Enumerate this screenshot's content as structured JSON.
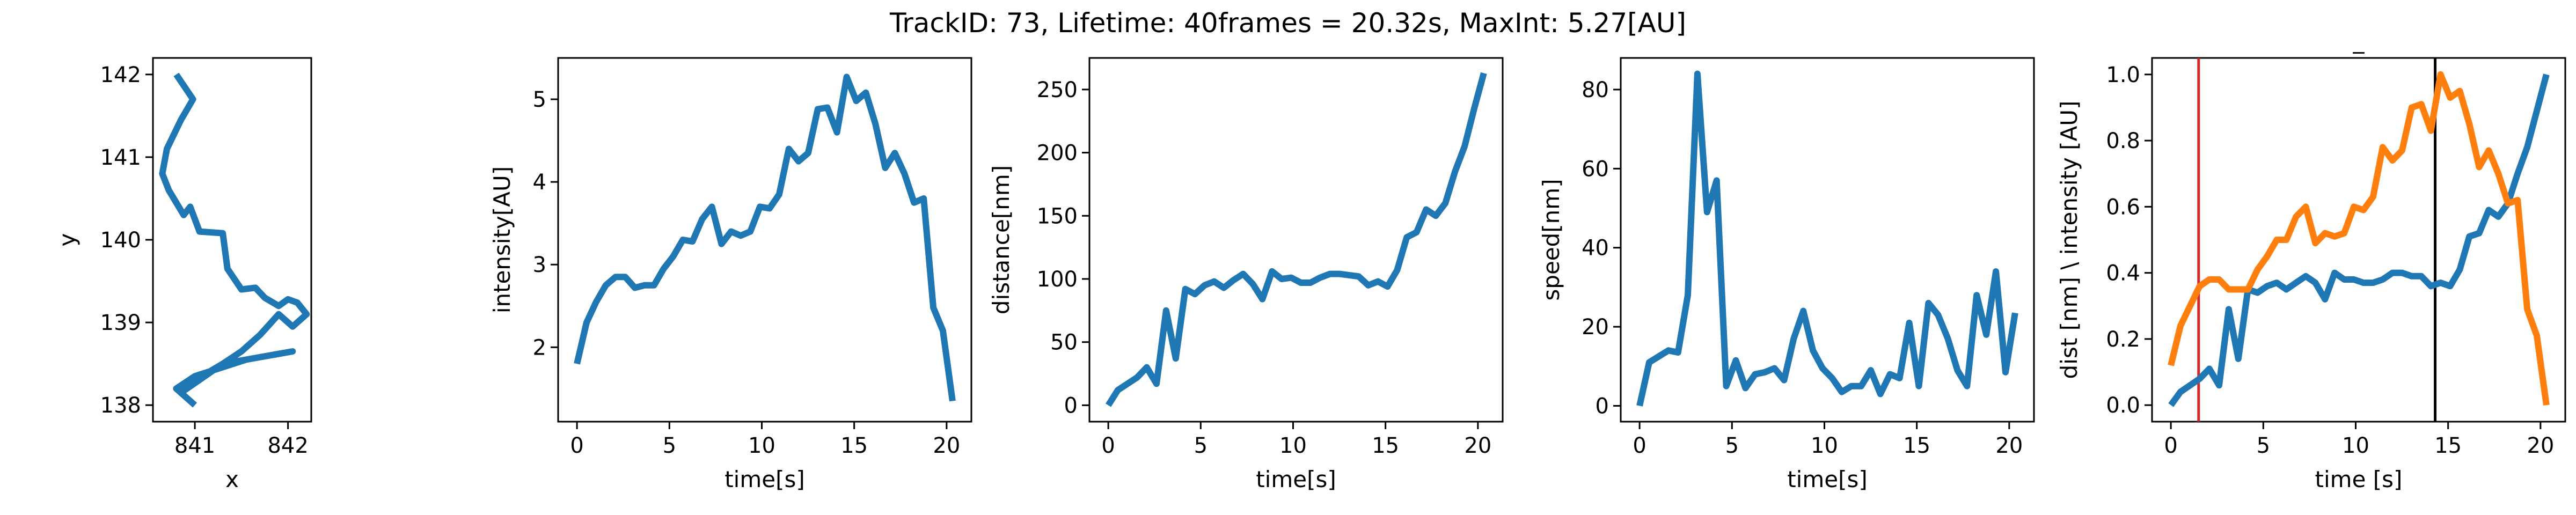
{
  "figure": {
    "suptitle": "TrackID: 73, Lifetime: 40frames = 20.32s, MaxInt: 5.27[AU]"
  },
  "chart_data": [
    {
      "type": "line",
      "title": "",
      "xlabel": "x",
      "ylabel": "y",
      "xlim": [
        840.55,
        842.25
      ],
      "ylim": [
        137.8,
        142.2
      ],
      "xticks": [
        841,
        842
      ],
      "yticks": [
        138,
        139,
        140,
        141,
        142
      ],
      "grid": false,
      "series": [
        {
          "color": "#1f77b4",
          "x": [
            840.8,
            840.95,
            840.98,
            840.85,
            840.7,
            840.65,
            840.72,
            840.88,
            840.95,
            841.05,
            841.3,
            841.35,
            841.5,
            841.65,
            841.75,
            841.9,
            842.0,
            842.1,
            842.2,
            842.05,
            841.9,
            841.7,
            841.5,
            841.3,
            841.15,
            840.95,
            840.85,
            841.3,
            842.05,
            841.55,
            841.0,
            840.8,
            841.0
          ],
          "y": [
            142.0,
            141.75,
            141.7,
            141.45,
            141.1,
            140.8,
            140.6,
            140.3,
            140.4,
            140.1,
            140.08,
            139.65,
            139.4,
            139.42,
            139.3,
            139.2,
            139.28,
            139.24,
            139.1,
            138.95,
            139.1,
            138.85,
            138.65,
            138.5,
            138.4,
            138.25,
            138.15,
            138.5,
            138.65,
            138.55,
            138.35,
            138.2,
            138.0
          ]
        }
      ]
    },
    {
      "type": "line",
      "title": "",
      "xlabel": "time[s]",
      "ylabel": "intensity[AU]",
      "xlim": [
        -1.02,
        21.34
      ],
      "ylim": [
        1.1,
        5.5
      ],
      "xticks": [
        0,
        5,
        10,
        15,
        20
      ],
      "yticks": [
        2,
        3,
        4,
        5
      ],
      "grid": false,
      "series": [
        {
          "color": "#1f77b4",
          "x": [
            0.0,
            0.52,
            1.04,
            1.56,
            2.08,
            2.61,
            3.13,
            3.65,
            4.17,
            4.69,
            5.21,
            5.73,
            6.25,
            6.77,
            7.3,
            7.82,
            8.34,
            8.86,
            9.38,
            9.9,
            10.42,
            10.94,
            11.46,
            11.99,
            12.51,
            13.03,
            13.55,
            14.07,
            14.59,
            15.11,
            15.63,
            16.15,
            16.68,
            17.2,
            17.72,
            18.24,
            18.76,
            19.28,
            19.8,
            20.32
          ],
          "y": [
            1.8,
            2.3,
            2.55,
            2.75,
            2.85,
            2.85,
            2.72,
            2.75,
            2.75,
            2.95,
            3.1,
            3.3,
            3.28,
            3.55,
            3.7,
            3.25,
            3.4,
            3.35,
            3.4,
            3.7,
            3.68,
            3.85,
            4.4,
            4.25,
            4.35,
            4.88,
            4.9,
            4.6,
            5.27,
            4.98,
            5.08,
            4.7,
            4.17,
            4.35,
            4.1,
            3.75,
            3.8,
            2.48,
            2.2,
            1.35
          ]
        }
      ]
    },
    {
      "type": "line",
      "title": "",
      "xlabel": "time[s]",
      "ylabel": "distance[nm]",
      "xlim": [
        -1.02,
        21.34
      ],
      "ylim": [
        -13,
        275
      ],
      "xticks": [
        0,
        5,
        10,
        15,
        20
      ],
      "yticks": [
        0,
        50,
        100,
        150,
        200,
        250
      ],
      "grid": false,
      "series": [
        {
          "color": "#1f77b4",
          "x": [
            0.0,
            0.52,
            1.04,
            1.56,
            2.08,
            2.61,
            3.13,
            3.65,
            4.17,
            4.69,
            5.21,
            5.73,
            6.25,
            6.77,
            7.3,
            7.82,
            8.34,
            8.86,
            9.38,
            9.9,
            10.42,
            10.94,
            11.46,
            11.99,
            12.51,
            13.03,
            13.55,
            14.07,
            14.59,
            15.11,
            15.63,
            16.15,
            16.68,
            17.2,
            17.72,
            18.24,
            18.76,
            19.28,
            19.8,
            20.32
          ],
          "y": [
            0,
            12,
            17,
            22,
            30,
            17,
            75,
            37,
            92,
            88,
            95,
            98,
            93,
            99,
            104,
            96,
            84,
            106,
            100,
            101,
            97,
            97,
            101,
            104,
            104,
            103,
            102,
            95,
            98,
            94,
            107,
            133,
            137,
            155,
            150,
            160,
            185,
            205,
            235,
            263
          ]
        }
      ]
    },
    {
      "type": "line",
      "title": "",
      "xlabel": "time[s]",
      "ylabel": "speed[nm]",
      "xlim": [
        -1.02,
        21.34
      ],
      "ylim": [
        -4,
        88
      ],
      "xticks": [
        0,
        5,
        10,
        15,
        20
      ],
      "yticks": [
        0,
        20,
        40,
        60,
        80
      ],
      "grid": false,
      "series": [
        {
          "color": "#1f77b4",
          "x": [
            0.0,
            0.52,
            1.04,
            1.56,
            2.08,
            2.61,
            3.13,
            3.65,
            4.17,
            4.69,
            5.21,
            5.73,
            6.25,
            6.77,
            7.3,
            7.82,
            8.34,
            8.86,
            9.38,
            9.9,
            10.42,
            10.94,
            11.46,
            11.99,
            12.51,
            13.03,
            13.55,
            14.07,
            14.59,
            15.11,
            15.63,
            16.15,
            16.68,
            17.2,
            17.72,
            18.24,
            18.76,
            19.28,
            19.8,
            20.32
          ],
          "y": [
            0,
            11,
            12.5,
            14,
            13.5,
            28,
            84,
            49,
            57,
            5,
            11.5,
            4.5,
            8,
            8.5,
            9.5,
            6.5,
            17,
            24,
            14,
            9.5,
            7,
            3.5,
            5,
            5,
            9,
            3,
            8,
            7,
            21,
            5,
            26,
            23,
            17,
            9,
            5,
            28,
            18,
            34,
            8.5,
            23.5
          ]
        }
      ]
    },
    {
      "type": "line",
      "title": "_",
      "xlabel": "time [s]",
      "ylabel": "dist [nm] \\ intensity [AU]",
      "xlim": [
        -1.02,
        21.34
      ],
      "ylim": [
        -0.05,
        1.05
      ],
      "xticks": [
        0,
        5,
        10,
        15,
        20
      ],
      "yticks": [
        0.0,
        0.2,
        0.4,
        0.6,
        0.8,
        1.0
      ],
      "ytick_labels": [
        "0.0",
        "0.2",
        "0.4",
        "0.6",
        "0.8",
        "1.0"
      ],
      "grid": false,
      "vlines": [
        {
          "x": 1.5,
          "color": "#d62728"
        },
        {
          "x": 14.3,
          "color": "#000000"
        }
      ],
      "series": [
        {
          "color": "#1f77b4",
          "x": [
            0.0,
            0.52,
            1.04,
            1.56,
            2.08,
            2.61,
            3.13,
            3.65,
            4.17,
            4.69,
            5.21,
            5.73,
            6.25,
            6.77,
            7.3,
            7.82,
            8.34,
            8.86,
            9.38,
            9.9,
            10.42,
            10.94,
            11.46,
            11.99,
            12.51,
            13.03,
            13.55,
            14.07,
            14.59,
            15.11,
            15.63,
            16.15,
            16.68,
            17.2,
            17.72,
            18.24,
            18.76,
            19.28,
            19.8,
            20.32
          ],
          "y": [
            0.0,
            0.04,
            0.06,
            0.08,
            0.11,
            0.06,
            0.29,
            0.14,
            0.35,
            0.34,
            0.36,
            0.37,
            0.35,
            0.37,
            0.39,
            0.37,
            0.32,
            0.4,
            0.38,
            0.38,
            0.37,
            0.37,
            0.38,
            0.4,
            0.4,
            0.39,
            0.39,
            0.36,
            0.37,
            0.36,
            0.41,
            0.51,
            0.52,
            0.59,
            0.57,
            0.61,
            0.7,
            0.78,
            0.89,
            1.0
          ]
        },
        {
          "color": "#ff7f0e",
          "x": [
            0.0,
            0.52,
            1.04,
            1.56,
            2.08,
            2.61,
            3.13,
            3.65,
            4.17,
            4.69,
            5.21,
            5.73,
            6.25,
            6.77,
            7.3,
            7.82,
            8.34,
            8.86,
            9.38,
            9.9,
            10.42,
            10.94,
            11.46,
            11.99,
            12.51,
            13.03,
            13.55,
            14.07,
            14.59,
            15.11,
            15.63,
            16.15,
            16.68,
            17.2,
            17.72,
            18.24,
            18.76,
            19.28,
            19.8,
            20.32
          ],
          "y": [
            0.12,
            0.24,
            0.3,
            0.36,
            0.38,
            0.38,
            0.35,
            0.35,
            0.35,
            0.41,
            0.45,
            0.5,
            0.5,
            0.57,
            0.6,
            0.49,
            0.52,
            0.51,
            0.52,
            0.6,
            0.59,
            0.63,
            0.78,
            0.74,
            0.77,
            0.9,
            0.91,
            0.83,
            1.0,
            0.93,
            0.95,
            0.85,
            0.72,
            0.77,
            0.7,
            0.61,
            0.62,
            0.29,
            0.21,
            0.0
          ]
        }
      ]
    }
  ]
}
